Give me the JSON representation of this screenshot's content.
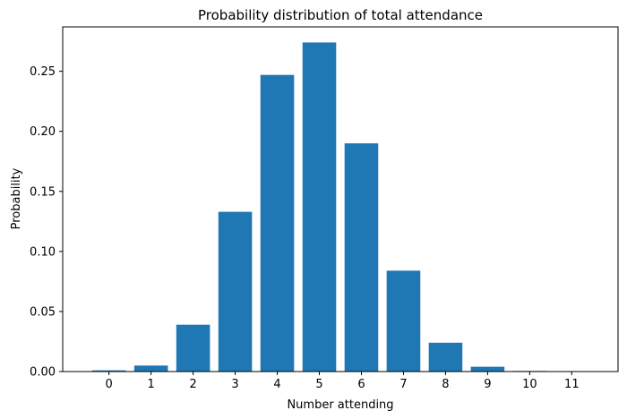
{
  "chart_data": {
    "type": "bar",
    "title": "Probability distribution of total attendance",
    "xlabel": "Number attending",
    "ylabel": "Probability",
    "categories": [
      "0",
      "1",
      "2",
      "3",
      "4",
      "5",
      "6",
      "7",
      "8",
      "9",
      "10",
      "11"
    ],
    "values": [
      0.001,
      0.005,
      0.039,
      0.133,
      0.247,
      0.274,
      0.19,
      0.084,
      0.024,
      0.004,
      0.0005,
      0.0001
    ],
    "ylim": [
      0,
      0.287
    ],
    "yticks": [
      0.0,
      0.05,
      0.1,
      0.15,
      0.2,
      0.25
    ],
    "ytick_labels": [
      "0.00",
      "0.05",
      "0.10",
      "0.15",
      "0.20",
      "0.25"
    ],
    "bar_color": "#1f77b4",
    "grid": false,
    "legend": "none"
  }
}
